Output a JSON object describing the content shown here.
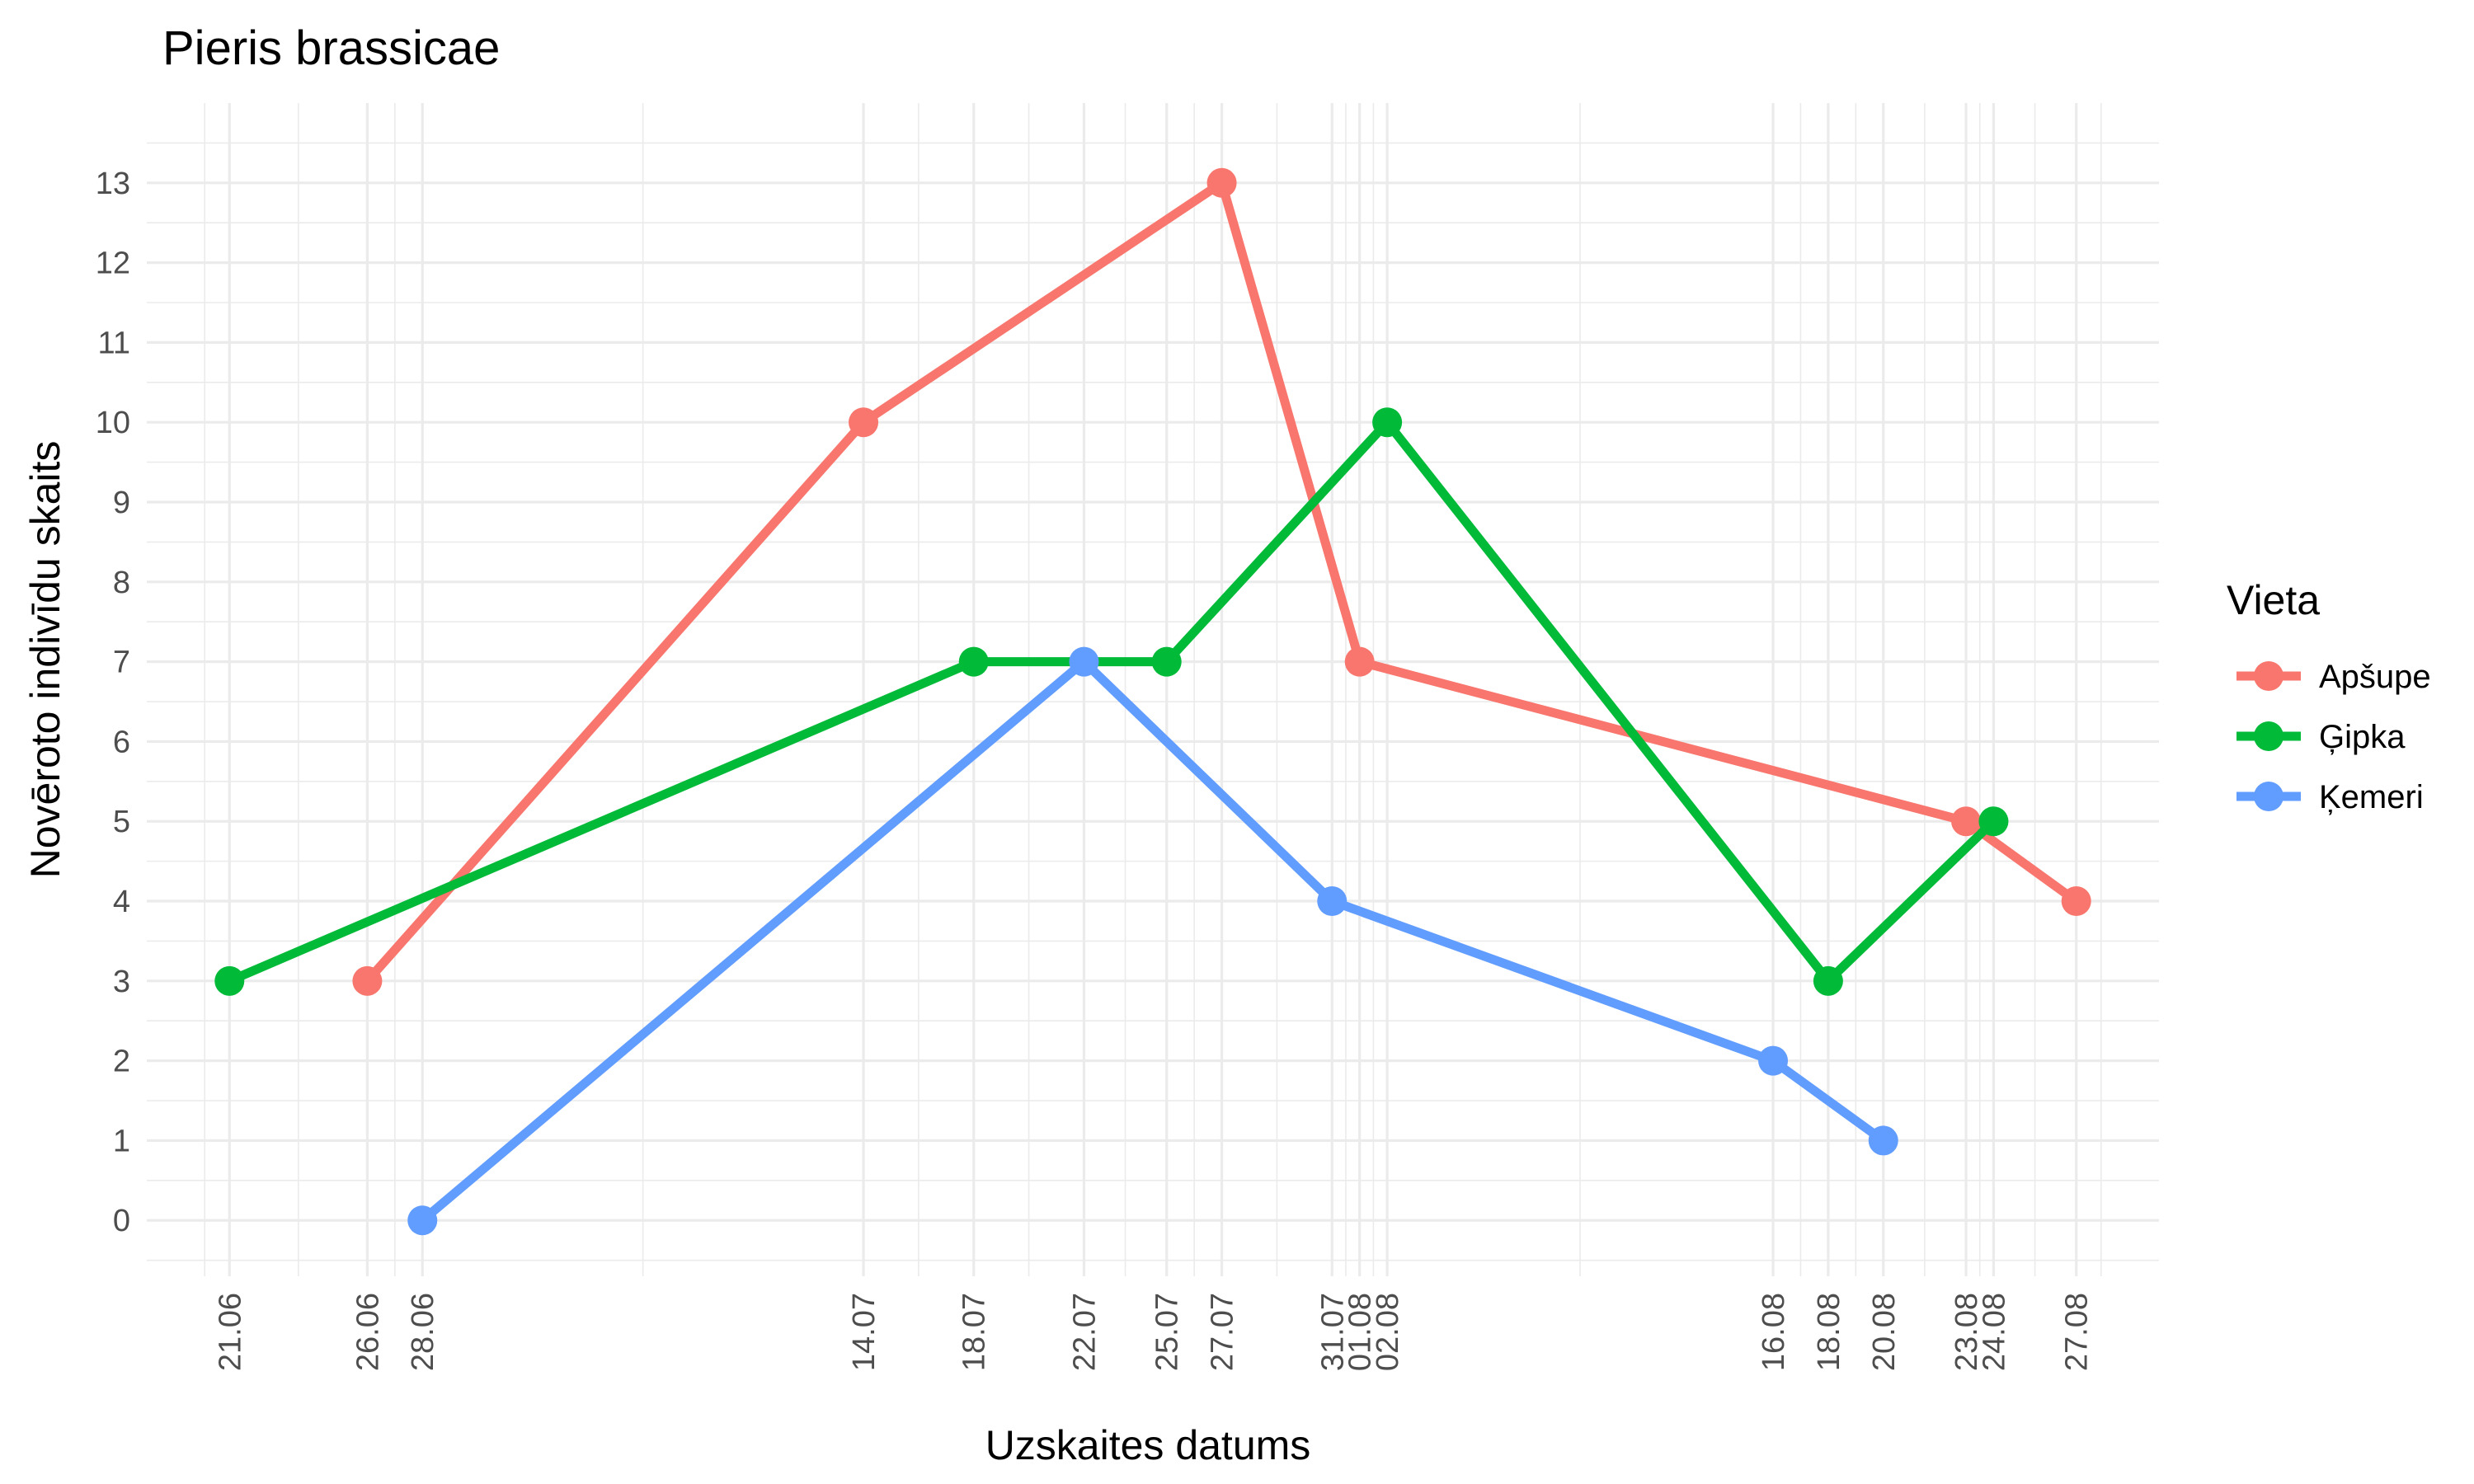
{
  "chart_data": {
    "type": "line",
    "title": "Pieris brassicae",
    "xlabel": "Uzskaites datums",
    "ylabel": "Novēroto indivīdu skaits",
    "x_ticks": [
      "21.06",
      "26.06",
      "28.06",
      "14.07",
      "18.07",
      "22.07",
      "25.07",
      "27.07",
      "31.07",
      "01.08",
      "02.08",
      "16.08",
      "18.08",
      "20.08",
      "23.08",
      "24.08",
      "27.08"
    ],
    "y_ticks": [
      0,
      1,
      2,
      3,
      4,
      5,
      6,
      7,
      8,
      9,
      10,
      11,
      12,
      13
    ],
    "ylim": [
      -0.7,
      14.0
    ],
    "xlim": [
      "18.06",
      "30.08"
    ],
    "grid": true,
    "legend": {
      "title": "Vieta",
      "position": "right"
    },
    "series": [
      {
        "name": "Apšupe",
        "color": "#F8766D",
        "points": [
          [
            "26.06",
            3
          ],
          [
            "14.07",
            10
          ],
          [
            "27.07",
            13
          ],
          [
            "01.08",
            7
          ],
          [
            "23.08",
            5
          ],
          [
            "27.08",
            4
          ]
        ]
      },
      {
        "name": "Ģipka",
        "color": "#00BA38",
        "points": [
          [
            "21.06",
            3
          ],
          [
            "18.07",
            7
          ],
          [
            "25.07",
            7
          ],
          [
            "02.08",
            10
          ],
          [
            "18.08",
            3
          ],
          [
            "24.08",
            5
          ]
        ]
      },
      {
        "name": "Ķemeri",
        "color": "#619CFF",
        "points": [
          [
            "28.06",
            0
          ],
          [
            "22.07",
            7
          ],
          [
            "31.07",
            4
          ],
          [
            "16.08",
            2
          ],
          [
            "20.08",
            1
          ]
        ]
      }
    ]
  }
}
